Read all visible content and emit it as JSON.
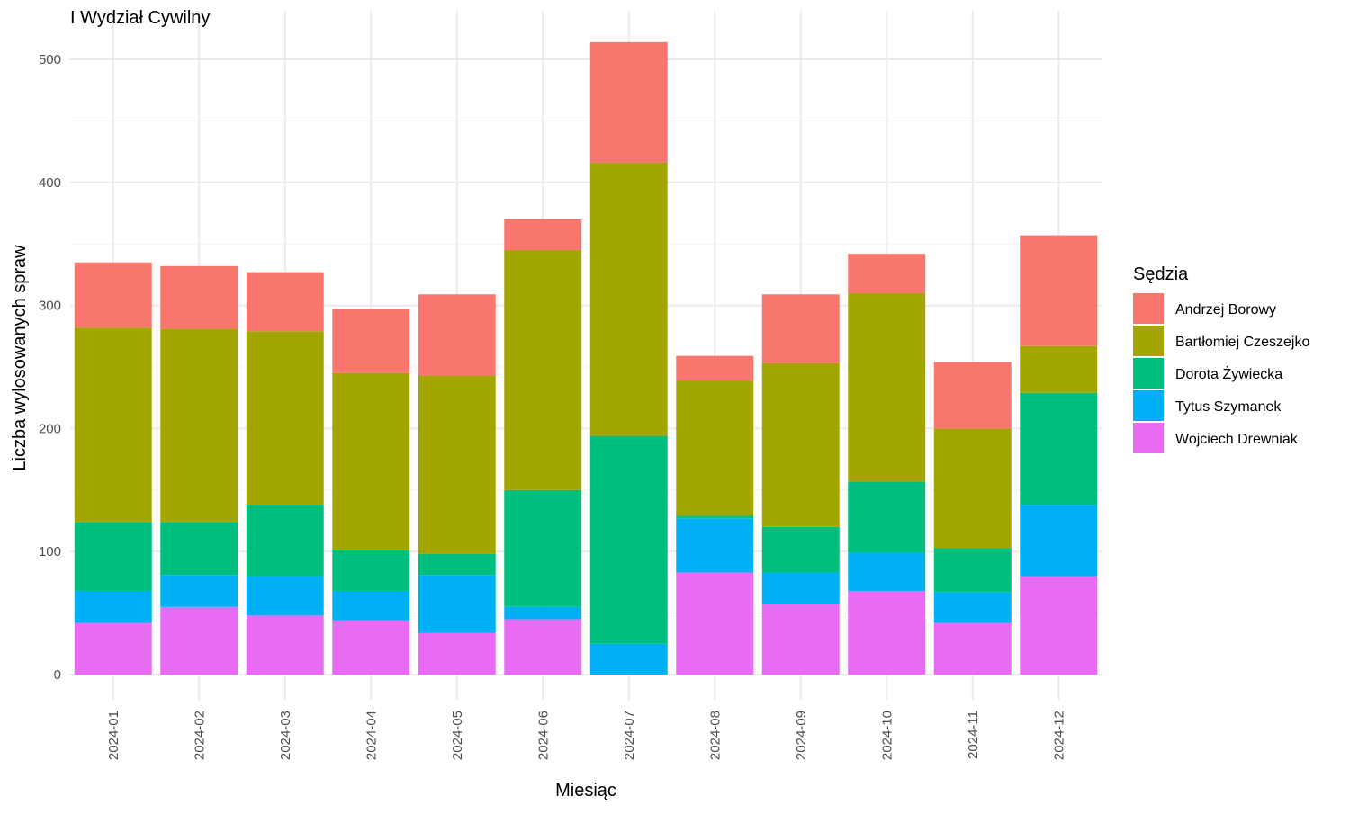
{
  "chart_data": {
    "type": "bar",
    "stacked": true,
    "title": "I Wydział Cywilny",
    "xlabel": "Miesiąc",
    "ylabel": "Liczba wylosowanych spraw",
    "ylim": [
      0,
      525
    ],
    "yticks": [
      0,
      100,
      200,
      300,
      400,
      500
    ],
    "grid": true,
    "legend_placement": "right",
    "legend_title": "Sędzia",
    "categories": [
      "2024-01",
      "2024-02",
      "2024-03",
      "2024-04",
      "2024-05",
      "2024-06",
      "2024-07",
      "2024-08",
      "2024-09",
      "2024-10",
      "2024-11",
      "2024-12"
    ],
    "stack_order_bottom_to_top": [
      "Wojciech Drewniak",
      "Tytus Szymanek",
      "Dorota Żywiecka",
      "Bartłomiej Czeszejko",
      "Andrzej Borowy"
    ],
    "series": [
      {
        "name": "Andrzej Borowy",
        "color": "#F8766D",
        "values": [
          53,
          51,
          48,
          52,
          66,
          25,
          98,
          20,
          56,
          32,
          54,
          90
        ]
      },
      {
        "name": "Bartłomiej Czeszejko",
        "color": "#A3A500",
        "values": [
          158,
          157,
          141,
          144,
          145,
          195,
          222,
          110,
          133,
          153,
          97,
          38
        ]
      },
      {
        "name": "Dorota Żywiecka",
        "color": "#00BF7D",
        "values": [
          56,
          43,
          58,
          33,
          17,
          95,
          169,
          2,
          37,
          58,
          36,
          91
        ]
      },
      {
        "name": "Tytus Szymanek",
        "color": "#00B0F6",
        "values": [
          26,
          26,
          32,
          24,
          47,
          10,
          25,
          44,
          26,
          31,
          25,
          58
        ]
      },
      {
        "name": "Wojciech Drewniak",
        "color": "#E76BF3",
        "values": [
          42,
          55,
          48,
          44,
          34,
          45,
          0,
          83,
          57,
          68,
          42,
          80
        ]
      }
    ]
  }
}
